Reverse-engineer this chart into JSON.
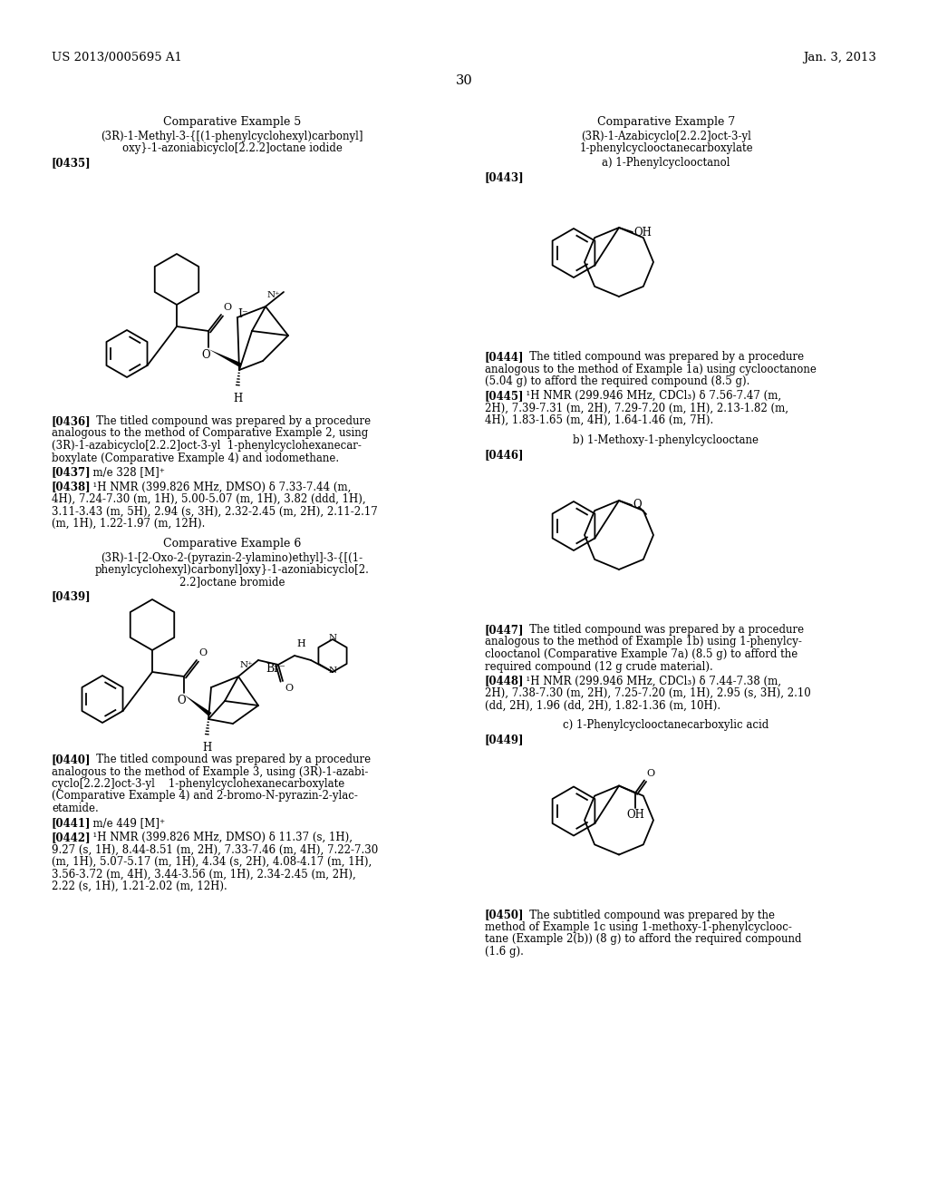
{
  "bg_color": "#ffffff",
  "header_left": "US 2013/0005695 A1",
  "header_right": "Jan. 3, 2013",
  "page_number": "30"
}
